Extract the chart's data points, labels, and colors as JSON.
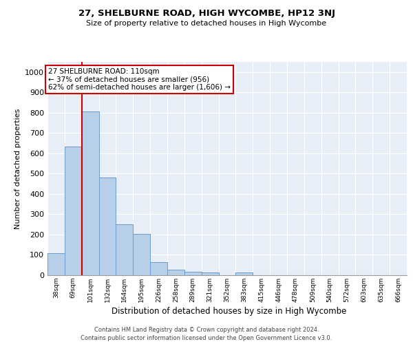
{
  "title": "27, SHELBURNE ROAD, HIGH WYCOMBE, HP12 3NJ",
  "subtitle": "Size of property relative to detached houses in High Wycombe",
  "xlabel": "Distribution of detached houses by size in High Wycombe",
  "ylabel": "Number of detached properties",
  "footer_line1": "Contains HM Land Registry data © Crown copyright and database right 2024.",
  "footer_line2": "Contains public sector information licensed under the Open Government Licence v3.0.",
  "bar_labels": [
    "38sqm",
    "69sqm",
    "101sqm",
    "132sqm",
    "164sqm",
    "195sqm",
    "226sqm",
    "258sqm",
    "289sqm",
    "321sqm",
    "352sqm",
    "383sqm",
    "415sqm",
    "446sqm",
    "478sqm",
    "509sqm",
    "540sqm",
    "572sqm",
    "603sqm",
    "635sqm",
    "666sqm"
  ],
  "bar_values": [
    110,
    635,
    805,
    480,
    250,
    203,
    63,
    28,
    18,
    15,
    0,
    14,
    0,
    0,
    0,
    0,
    0,
    0,
    0,
    0,
    0
  ],
  "bar_color": "#b8cfe8",
  "bar_edge_color": "#6699cc",
  "bg_color": "#e8eef7",
  "grid_color": "#ffffff",
  "property_line_color": "#cc0000",
  "property_line_index": 2,
  "annotation_text": "27 SHELBURNE ROAD: 110sqm\n← 37% of detached houses are smaller (956)\n62% of semi-detached houses are larger (1,606) →",
  "annotation_box_color": "#cc0000",
  "ylim": [
    0,
    1050
  ],
  "yticks": [
    0,
    100,
    200,
    300,
    400,
    500,
    600,
    700,
    800,
    900,
    1000
  ]
}
